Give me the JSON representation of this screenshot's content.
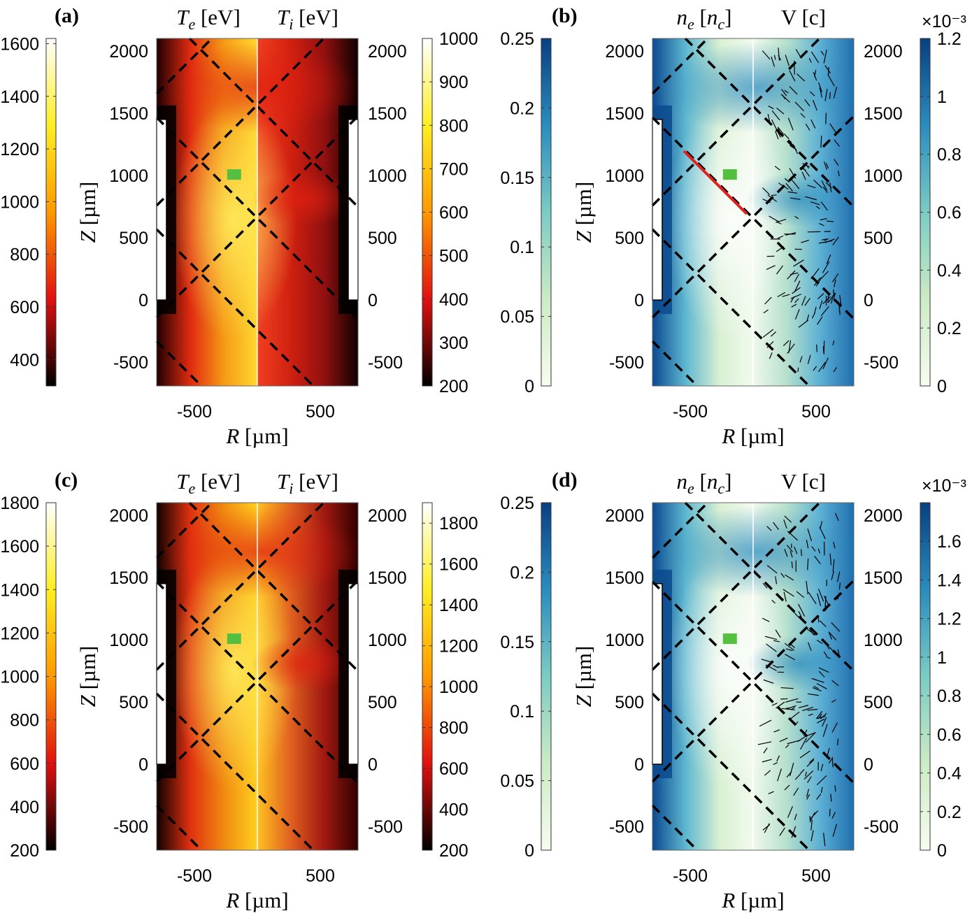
{
  "chart_data": [
    {
      "type": "heatmap",
      "panel": "(a)",
      "left_title": {
        "sym": "T",
        "sub": "e",
        "unit": " [eV]"
      },
      "right_title": {
        "sym": "T",
        "sub": "i",
        "unit": " [eV]"
      },
      "xlabel": {
        "sym": "R",
        "unit": " [µm]"
      },
      "ylabel": {
        "sym": "Z",
        "unit": " [µm]"
      },
      "xticks": [
        -500,
        500
      ],
      "yticks": [
        2000,
        1500,
        1000,
        500,
        0,
        -500
      ],
      "xlim": [
        -800,
        800
      ],
      "ylim": [
        -690,
        2100
      ],
      "colormap": "hot",
      "left_colorbar": {
        "range": [
          300,
          1620
        ],
        "ticks": [
          1600,
          1400,
          1200,
          1000,
          800,
          600,
          400
        ]
      },
      "right_colorbar": {
        "range": [
          200,
          1000
        ],
        "ticks": [
          1000,
          900,
          800,
          700,
          600,
          500,
          400,
          300,
          200
        ]
      }
    },
    {
      "type": "heatmap",
      "panel": "(b)",
      "left_title": {
        "sym": "n",
        "sub": "e",
        "unit": " [",
        "sym2": "n",
        "sub2": "c",
        "unit2": "]"
      },
      "right_title": {
        "sym": "",
        "sub": "",
        "unit": "V [c]"
      },
      "xlabel": {
        "sym": "R",
        "unit": " [µm]"
      },
      "ylabel": {
        "sym": "Z",
        "unit": " [µm]"
      },
      "xticks": [
        -500,
        500
      ],
      "yticks": [
        2000,
        1500,
        1000,
        500,
        0,
        -500
      ],
      "xlim": [
        -800,
        800
      ],
      "ylim": [
        -690,
        2100
      ],
      "colormap": "GnBu",
      "left_colorbar": {
        "range": [
          0,
          0.25
        ],
        "ticks": [
          "0.25",
          "0.2",
          "0.15",
          "0.1",
          "0.05",
          "0"
        ]
      },
      "right_colorbar": {
        "range": [
          0,
          1.2
        ],
        "ticks": [
          "1.2",
          "1",
          "0.8",
          "0.6",
          "0.4",
          "0.2",
          "0"
        ],
        "multiplier": "×10⁻³"
      }
    },
    {
      "type": "heatmap",
      "panel": "(c)",
      "left_title": {
        "sym": "T",
        "sub": "e",
        "unit": " [eV]"
      },
      "right_title": {
        "sym": "T",
        "sub": "i",
        "unit": " [eV]"
      },
      "xlabel": {
        "sym": "R",
        "unit": " [µm]"
      },
      "ylabel": {
        "sym": "Z",
        "unit": " [µm]"
      },
      "xticks": [
        -500,
        500
      ],
      "yticks": [
        2000,
        1500,
        1000,
        500,
        0,
        -500
      ],
      "xlim": [
        -800,
        800
      ],
      "ylim": [
        -690,
        2100
      ],
      "colormap": "hot",
      "left_colorbar": {
        "range": [
          200,
          1800
        ],
        "ticks": [
          1800,
          1600,
          1400,
          1200,
          1000,
          800,
          600,
          400,
          200
        ]
      },
      "right_colorbar": {
        "range": [
          200,
          1900
        ],
        "ticks": [
          1800,
          1600,
          1400,
          1200,
          1000,
          800,
          600,
          400,
          200
        ]
      }
    },
    {
      "type": "heatmap",
      "panel": "(d)",
      "left_title": {
        "sym": "n",
        "sub": "e",
        "unit": " [",
        "sym2": "n",
        "sub2": "c",
        "unit2": "]"
      },
      "right_title": {
        "sym": "",
        "sub": "",
        "unit": "V [c]"
      },
      "xlabel": {
        "sym": "R",
        "unit": " [µm]"
      },
      "ylabel": {
        "sym": "Z",
        "unit": " [µm]"
      },
      "xticks": [
        -500,
        500
      ],
      "yticks": [
        2000,
        1500,
        1000,
        500,
        0,
        -500
      ],
      "xlim": [
        -800,
        800
      ],
      "ylim": [
        -690,
        2100
      ],
      "colormap": "GnBu",
      "left_colorbar": {
        "range": [
          0,
          0.25
        ],
        "ticks": [
          "0.25",
          "0.2",
          "0.15",
          "0.1",
          "0.05",
          "0"
        ]
      },
      "right_colorbar": {
        "range": [
          0,
          1.8
        ],
        "ticks": [
          "1.6",
          "1.4",
          "1.2",
          "1",
          "0.8",
          "0.6",
          "0.4",
          "0.2",
          "0"
        ],
        "multiplier": "×10⁻³"
      }
    }
  ],
  "colors": {
    "hot": [
      "#000000",
      "#e01010",
      "#ff9900",
      "#ffee22",
      "#ffffff"
    ],
    "GnBu": [
      "#f7fcf0",
      "#ccebc5",
      "#7bccc4",
      "#2b8cbe",
      "#084081"
    ],
    "target_marker": "#55c040",
    "red_line": "#e02020"
  }
}
